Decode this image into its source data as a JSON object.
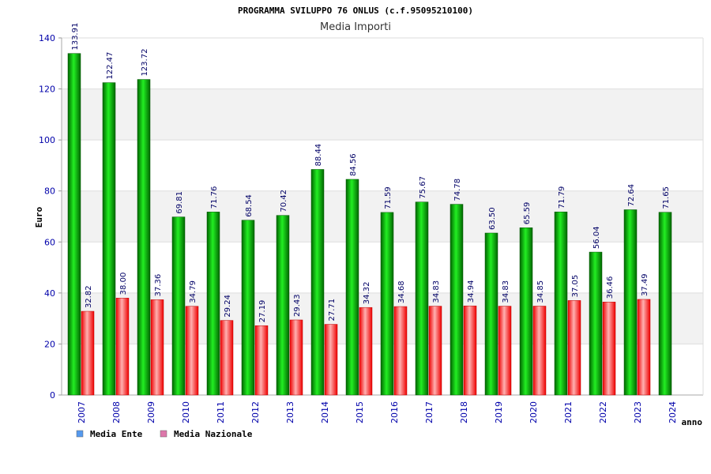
{
  "chart_data": {
    "type": "bar",
    "title": "PROGRAMMA SVILUPPO 76 ONLUS (c.f.95095210100)",
    "subtitle": "Media Importi",
    "ylabel": "Euro",
    "xlabel": "anno",
    "ylim": [
      0,
      140
    ],
    "yticks": [
      0,
      20,
      40,
      60,
      80,
      100,
      120,
      140
    ],
    "categories": [
      "2007",
      "2008",
      "2009",
      "2010",
      "2011",
      "2012",
      "2013",
      "2014",
      "2015",
      "2016",
      "2017",
      "2018",
      "2019",
      "2020",
      "2021",
      "2022",
      "2023",
      "2024"
    ],
    "series": [
      {
        "name": "Media Ente",
        "color": "#00aa00",
        "values": [
          133.91,
          122.47,
          123.72,
          69.81,
          71.76,
          68.54,
          70.42,
          88.44,
          84.56,
          71.59,
          75.67,
          74.78,
          63.5,
          65.59,
          71.79,
          56.04,
          72.64,
          71.65
        ],
        "labels": [
          "133.91",
          "122.47",
          "123.72",
          "69.81",
          "71.76",
          "68.54",
          "70.42",
          "88.44",
          "84.56",
          "71.59",
          "75.67",
          "74.78",
          "63.50",
          "65.59",
          "71.79",
          "56.04",
          "72.64",
          "71.65"
        ]
      },
      {
        "name": "Media Nazionale",
        "color": "#ee1111",
        "values": [
          32.82,
          38.0,
          37.36,
          34.79,
          29.24,
          27.19,
          29.43,
          27.71,
          34.32,
          34.68,
          34.83,
          34.94,
          34.83,
          34.85,
          37.05,
          36.46,
          37.49,
          null
        ],
        "labels": [
          "32.82",
          "38.00",
          "37.36",
          "34.79",
          "29.24",
          "27.19",
          "29.43",
          "27.71",
          "34.32",
          "34.68",
          "34.83",
          "34.94",
          "34.83",
          "34.85",
          "37.05",
          "36.46",
          "37.49",
          null
        ]
      }
    ],
    "legend": {
      "placement": "bottom-left",
      "items": [
        {
          "label": "Media Ente",
          "color": "#5599ee"
        },
        {
          "label": "Media Nazionale",
          "color": "#dd77aa"
        }
      ]
    },
    "grid": true,
    "band_color": "#f2f2f2"
  }
}
